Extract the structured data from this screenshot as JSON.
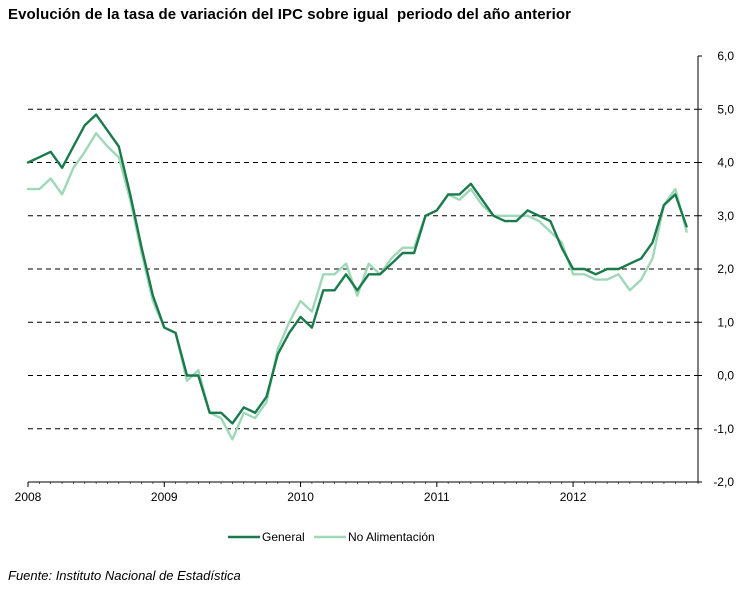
{
  "chart_data": {
    "type": "line",
    "title": "Evolución de la tasa de variación del IPC sobre igual  periodo del año anterior",
    "source": "Fuente: Instituto Nacional de Estadística",
    "xlabel": "",
    "ylabel": "",
    "ylim": [
      -2.0,
      6.0
    ],
    "y_ticks": [
      "6,0",
      "5,0",
      "4,0",
      "3,0",
      "2,0",
      "1,0",
      "0,0",
      "-1,0",
      "-2,0"
    ],
    "y_tick_values": [
      6,
      5,
      4,
      3,
      2,
      1,
      0,
      -1,
      -2
    ],
    "x_ticks": [
      "2008",
      "2009",
      "2010",
      "2011",
      "2012"
    ],
    "x_tick_index": [
      0,
      12,
      24,
      36,
      48
    ],
    "grid": "horizontal dashed",
    "legend_position": "bottom",
    "x_range_months": [
      0,
      59
    ],
    "series": [
      {
        "name": "General",
        "color": "#1a7a4c",
        "values": [
          4.0,
          4.1,
          4.2,
          3.9,
          4.3,
          4.7,
          4.9,
          4.6,
          4.3,
          3.4,
          2.4,
          1.5,
          0.9,
          0.8,
          0.0,
          0.0,
          -0.7,
          -0.7,
          -0.9,
          -0.6,
          -0.7,
          -0.4,
          0.4,
          0.8,
          1.1,
          0.9,
          1.6,
          1.6,
          1.9,
          1.6,
          1.9,
          1.9,
          2.1,
          2.3,
          2.3,
          3.0,
          3.1,
          3.4,
          3.4,
          3.6,
          3.3,
          3.0,
          2.9,
          2.9,
          3.1,
          3.0,
          2.9,
          2.4,
          2.0,
          2.0,
          1.9,
          2.0,
          2.0,
          2.1,
          2.2,
          2.5,
          3.2,
          3.4,
          2.8
        ]
      },
      {
        "name": "No Alimentación",
        "color": "#9fd8b8",
        "values": [
          3.5,
          3.5,
          3.7,
          3.4,
          3.9,
          4.2,
          4.55,
          4.3,
          4.1,
          3.3,
          2.3,
          1.4,
          0.9,
          0.8,
          -0.1,
          0.1,
          -0.7,
          -0.8,
          -1.2,
          -0.7,
          -0.8,
          -0.5,
          0.5,
          1.0,
          1.4,
          1.2,
          1.9,
          1.9,
          2.1,
          1.5,
          2.1,
          1.9,
          2.2,
          2.4,
          2.4,
          3.0,
          3.1,
          3.4,
          3.3,
          3.5,
          3.2,
          3.0,
          3.0,
          3.0,
          3.0,
          2.9,
          2.7,
          2.5,
          1.9,
          1.9,
          1.8,
          1.8,
          1.9,
          1.6,
          1.8,
          2.2,
          3.2,
          3.5,
          2.7
        ]
      }
    ]
  }
}
